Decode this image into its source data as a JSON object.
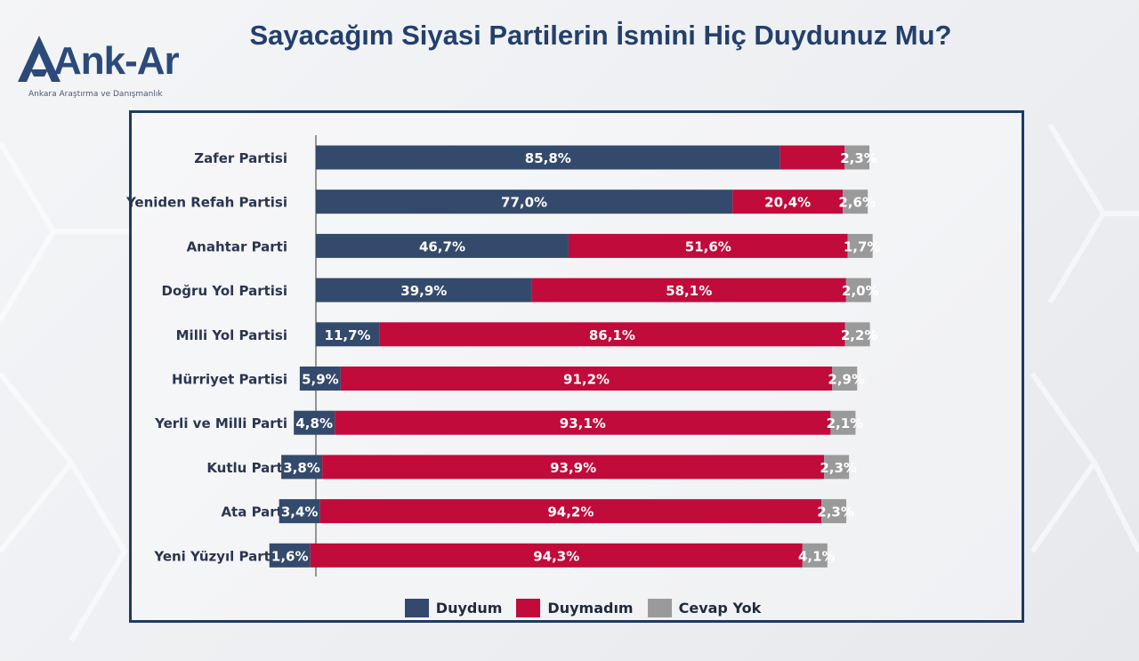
{
  "header": {
    "title": "Sayacağım Siyasi Partilerin İsmini Hiç Duydunuz Mu?",
    "logo_text": "Ank-Ar",
    "logo_subtitle": "Ankara Araştırma ve Danışmanlık"
  },
  "colors": {
    "duydum": "#344a6c",
    "duymadim": "#c10b3b",
    "cevap_yok": "#9a9a9a",
    "title": "#243f6b",
    "frame": "#1e3a66"
  },
  "legend": [
    {
      "label": "Duydum",
      "color_key": "duydum"
    },
    {
      "label": "Duymadım",
      "color_key": "duymadim"
    },
    {
      "label": "Cevap Yok",
      "color_key": "cevap_yok"
    }
  ],
  "chart_data": {
    "type": "bar",
    "orientation": "horizontal",
    "stacked": true,
    "categories": [
      "Zafer Partisi",
      "Yeniden Refah Partisi",
      "Anahtar Parti",
      "Doğru Yol Partisi",
      "Milli Yol Partisi",
      "Hürriyet Partisi",
      "Yerli ve Milli Parti",
      "Kutlu Parti",
      "Ata Parti",
      "Yeni Yüzyıl Partisi"
    ],
    "series": [
      {
        "name": "Duydum",
        "color": "#344a6c",
        "values": [
          85.8,
          77.0,
          46.7,
          39.9,
          11.7,
          5.9,
          4.8,
          3.8,
          3.4,
          1.6
        ],
        "labels": [
          "85,8%",
          "77,0%",
          "46,7%",
          "39,9%",
          "11,7%",
          "5,9%",
          "4,8%",
          "3,8%",
          "3,4%",
          "1,6%"
        ]
      },
      {
        "name": "Duymadım",
        "color": "#c10b3b",
        "values": [
          11.9,
          20.4,
          51.6,
          58.1,
          86.1,
          91.2,
          93.1,
          93.9,
          94.2,
          94.3
        ],
        "labels": [
          "",
          "20,4%",
          "51,6%",
          "58,1%",
          "86,1%",
          "91,2%",
          "93,1%",
          "93,9%",
          "94,2%",
          "94,3%"
        ]
      },
      {
        "name": "Cevap Yok",
        "color": "#9a9a9a",
        "values": [
          2.3,
          2.6,
          1.7,
          2.0,
          2.2,
          2.9,
          2.1,
          2.3,
          2.3,
          4.1
        ],
        "labels": [
          "2,3%",
          "2,6%",
          "1,7%",
          "2,0%",
          "2,2%",
          "2,9%",
          "2,1%",
          "2,3%",
          "2,3%",
          "4,1%"
        ]
      }
    ],
    "xlim": [
      0,
      100
    ],
    "legend_position": "bottom-center",
    "grid": false
  }
}
